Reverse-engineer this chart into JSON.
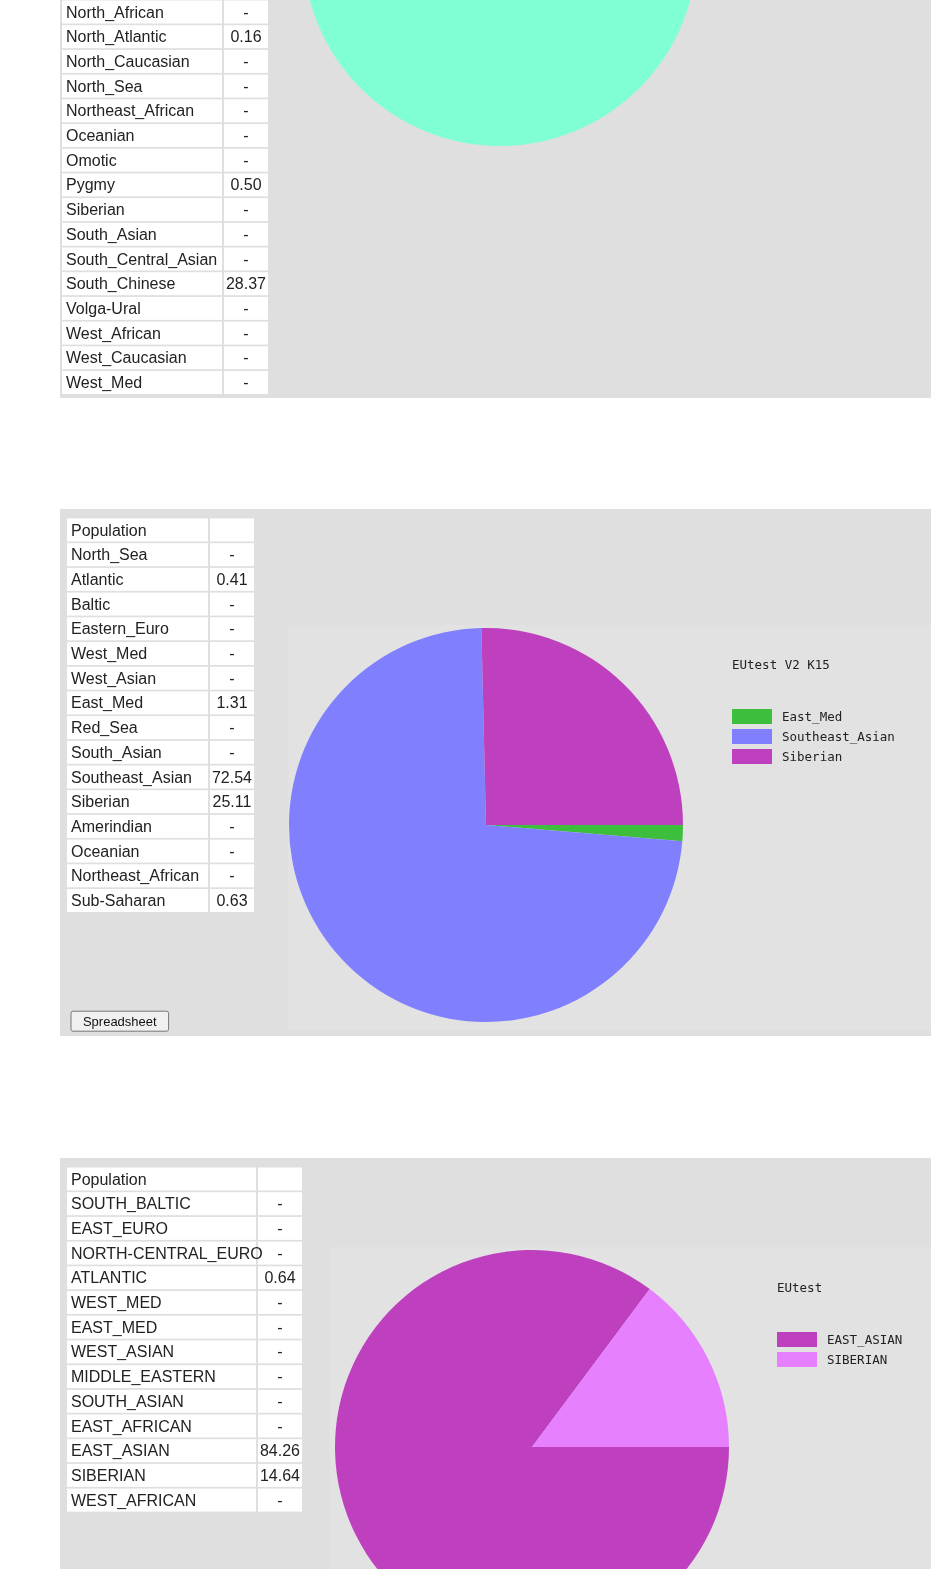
{
  "chart_data": [
    {
      "type": "other",
      "categories": [
        "North_African",
        "North_Atlantic",
        "North_Caucasian",
        "North_Sea",
        "Northeast_African",
        "Oceanian",
        "Omotic",
        "Pygmy",
        "Siberian",
        "South_Asian",
        "South_Central_Asian",
        "South_Chinese",
        "Volga-Ural",
        "West_African",
        "West_Caucasian",
        "West_Med"
      ],
      "value_labels": [
        "-",
        "0.16",
        "-",
        "-",
        "-",
        "-",
        "-",
        "0.50",
        "-",
        "-",
        "-",
        "28.37",
        "-",
        "-",
        "-",
        "-"
      ]
    },
    {
      "type": "other",
      "title": "Population",
      "categories": [
        "North_Sea",
        "Atlantic",
        "Baltic",
        "Eastern_Euro",
        "West_Med",
        "West_Asian",
        "East_Med",
        "Red_Sea",
        "South_Asian",
        "Southeast_Asian",
        "Siberian",
        "Amerindian",
        "Oceanian",
        "Northeast_African",
        "Sub-Saharan"
      ],
      "value_labels": [
        "-",
        "0.41",
        "-",
        "-",
        "-",
        "-",
        "1.31",
        "-",
        "-",
        "72.54",
        "25.11",
        "-",
        "-",
        "-",
        "0.63"
      ],
      "annotations": [
        "Spreadsheet"
      ]
    },
    {
      "type": "pie",
      "legend_title": "EUtest V2 K15",
      "legend": "right",
      "categories": [
        "East_Med",
        "Southeast_Asian",
        "Siberian"
      ],
      "values": [
        1.31,
        72.54,
        25.11
      ],
      "colors": [
        "#3dbf3d",
        "#8080ff",
        "#bf40bf"
      ]
    },
    {
      "type": "other",
      "title": "Population",
      "categories": [
        "SOUTH_BALTIC",
        "EAST_EURO",
        "NORTH-CENTRAL_EURO",
        "ATLANTIC",
        "WEST_MED",
        "EAST_MED",
        "WEST_ASIAN",
        "MIDDLE_EASTERN",
        "SOUTH_ASIAN",
        "EAST_AFRICAN",
        "EAST_ASIAN",
        "SIBERIAN",
        "WEST_AFRICAN"
      ],
      "value_labels": [
        "-",
        "-",
        "-",
        "0.64",
        "-",
        "-",
        "-",
        "-",
        "-",
        "-",
        "84.26",
        "14.64",
        "-"
      ]
    },
    {
      "type": "pie",
      "legend_title": "EUtest",
      "legend": "right",
      "categories": [
        "EAST_ASIAN",
        "SIBERIAN"
      ],
      "values": [
        84.26,
        14.64
      ],
      "colors": [
        "#bf40bf",
        "#e680ff"
      ]
    }
  ]
}
